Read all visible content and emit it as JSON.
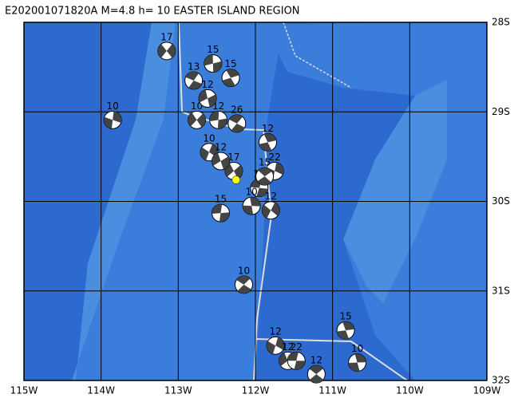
{
  "chart_data": {
    "type": "map",
    "title": "E202001071820A M=4.8 h= 10 EASTER ISLAND REGION",
    "xlim": [
      -115,
      -109
    ],
    "ylim": [
      -32,
      -28
    ],
    "xticks": [
      {
        "value": -115,
        "label": "115W"
      },
      {
        "value": -114,
        "label": "114W"
      },
      {
        "value": -113,
        "label": "113W"
      },
      {
        "value": -112,
        "label": "112W"
      },
      {
        "value": -111,
        "label": "111W"
      },
      {
        "value": -110,
        "label": "110W"
      },
      {
        "value": -109,
        "label": "109W"
      }
    ],
    "yticks": [
      {
        "value": -28,
        "label": "28S"
      },
      {
        "value": -29,
        "label": "29S"
      },
      {
        "value": -30,
        "label": "30S"
      },
      {
        "value": -31,
        "label": "31S"
      },
      {
        "value": -32,
        "label": "32S"
      }
    ],
    "grid": true,
    "epicenter": {
      "lon": -112.25,
      "lat": -29.76,
      "color": "#ffff00"
    },
    "events": {
      "lon": [
        -113.15,
        -112.55,
        -112.8,
        -112.32,
        -113.85,
        -112.76,
        -112.48,
        -112.24,
        -111.84,
        -111.75,
        -112.28,
        -112.45,
        -112.15,
        -110.83,
        -111.74,
        -111.58,
        -111.47,
        -111.21,
        -110.68,
        -112.6,
        -112.45,
        -111.95,
        -111.88,
        -112.05,
        -111.8,
        -112.62
      ],
      "lat": [
        -28.32,
        -28.46,
        -28.65,
        -28.62,
        -29.09,
        -29.09,
        -29.09,
        -29.13,
        -29.34,
        -29.66,
        -29.66,
        -30.13,
        -30.93,
        -31.44,
        -31.61,
        -31.78,
        -31.78,
        -31.93,
        -31.8,
        -29.45,
        -29.55,
        -29.85,
        -29.72,
        -30.05,
        -30.1,
        -28.85
      ],
      "depths": [
        17,
        15,
        13,
        15,
        10,
        10,
        12,
        26,
        12,
        22,
        17,
        15,
        10,
        15,
        12,
        12,
        22,
        12,
        10,
        10,
        12,
        10,
        15,
        10,
        12,
        12
      ]
    }
  }
}
